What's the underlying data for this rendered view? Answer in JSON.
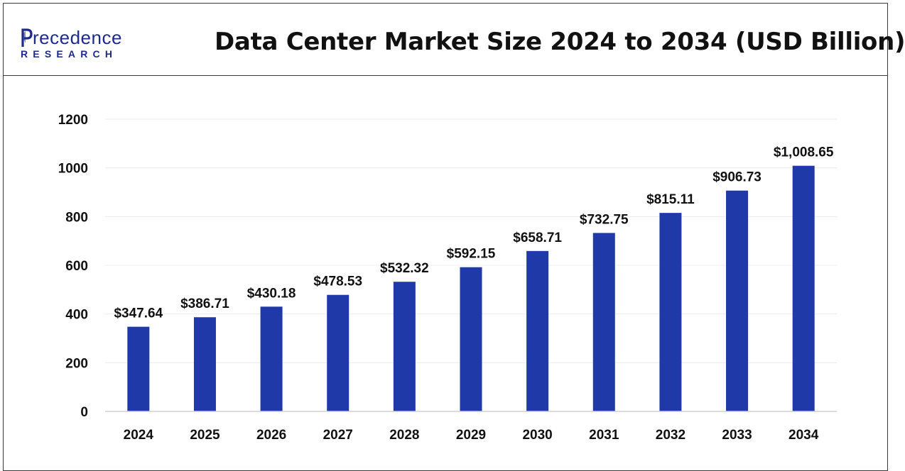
{
  "header": {
    "logo_word": "recedence",
    "logo_sub": "RESEARCH",
    "title": "Data Center Market Size 2024 to 2034 (USD Billion)"
  },
  "colors": {
    "bar": "#1f39a8",
    "brand": "#1e2a8c",
    "grid": "#ececec"
  },
  "chart_data": {
    "type": "bar",
    "title": "Data Center Market Size 2024 to 2034 (USD Billion)",
    "xlabel": "",
    "ylabel": "",
    "categories": [
      "2024",
      "2025",
      "2026",
      "2027",
      "2028",
      "2029",
      "2030",
      "2031",
      "2032",
      "2033",
      "2034"
    ],
    "values": [
      347.64,
      386.71,
      430.18,
      478.53,
      532.32,
      592.15,
      658.71,
      732.75,
      815.11,
      906.73,
      1008.65
    ],
    "data_labels": [
      "$347.64",
      "$386.71",
      "$430.18",
      "$478.53",
      "$532.32",
      "$592.15",
      "$658.71",
      "$732.75",
      "$815.11",
      "$906.73",
      "$1,008.65"
    ],
    "yticks": [
      0,
      200,
      400,
      600,
      800,
      1000,
      1200
    ],
    "ylim": [
      0,
      1200
    ],
    "grid": true,
    "legend": "none"
  }
}
